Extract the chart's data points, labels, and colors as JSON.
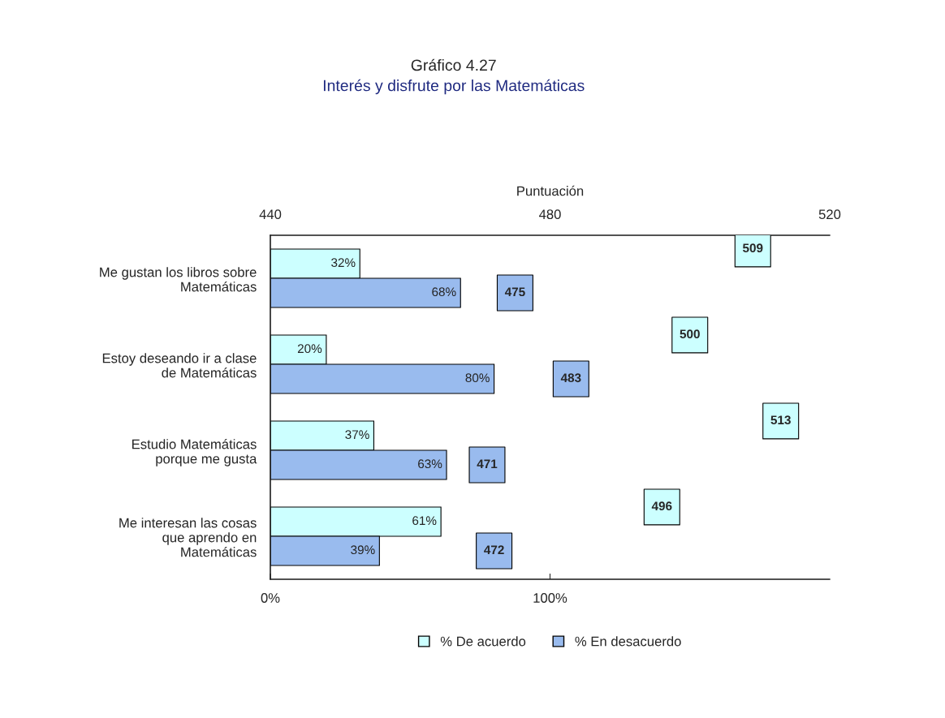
{
  "chart_data": {
    "type": "bar",
    "orientation": "horizontal",
    "title": "Gráfico 4.27",
    "subtitle": "Interés y disfrute por las Matemáticas",
    "x2label": "Puntuación",
    "categories": [
      "Me gustan los libros sobre\nMatemáticas",
      "Estoy deseando ir a clase\nde Matemáticas",
      "Estudio Matemáticas\nporque me gusta",
      "Me interesan las cosas\nque aprendo en\nMatemáticas"
    ],
    "series": [
      {
        "name": "% De acuerdo",
        "color": "#ccffff",
        "values": [
          32,
          20,
          37,
          61
        ],
        "value_labels": [
          "32%",
          "20%",
          "37%",
          "61%"
        ]
      },
      {
        "name": "% En desacuerdo",
        "color": "#99bbee",
        "values": [
          68,
          80,
          63,
          39
        ],
        "value_labels": [
          "68%",
          "80%",
          "63%",
          "39%"
        ]
      },
      {
        "type": "scatter",
        "axis": "x2",
        "marker": "square",
        "color": "#ccffff",
        "values": [
          509,
          500,
          513,
          496
        ],
        "data_labels": true
      },
      {
        "type": "scatter",
        "axis": "x2",
        "marker": "square",
        "color": "#99bbee",
        "values": [
          475,
          483,
          471,
          472
        ],
        "data_labels": true
      }
    ],
    "xlim": [
      0,
      200
    ],
    "xticks": [
      {
        "value": 0,
        "label": "0%"
      },
      {
        "value": 100,
        "label": "100%"
      }
    ],
    "x2lim": [
      440,
      520
    ],
    "x2ticks": [
      440,
      480,
      520
    ],
    "grid": false,
    "legend": "bottom"
  }
}
